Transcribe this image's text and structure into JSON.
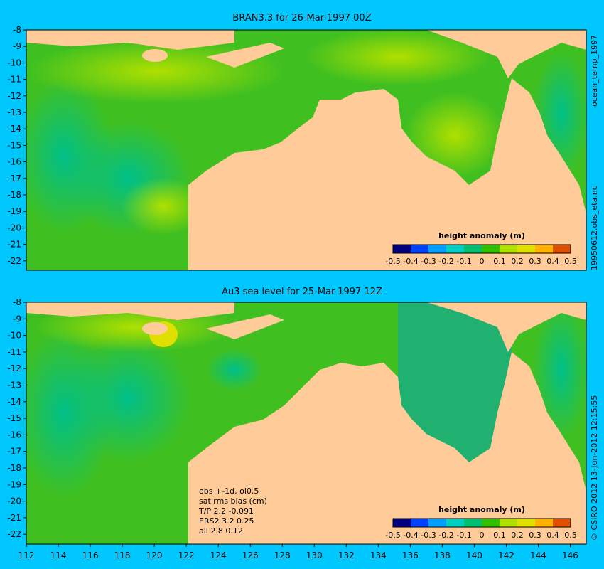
{
  "panels": {
    "top": {
      "title": "BRAN3.3 for 26-Mar-1997 00Z",
      "side_label": "ocean_temp_1997",
      "file_label": "19950612.obs_eta.nc",
      "colorbar": {
        "label": "height anomaly (m)",
        "ticks": [
          "-0.5",
          "-0.4",
          "-0.3",
          "-0.2",
          "-0.1",
          "0",
          "0.1",
          "0.2",
          "0.3",
          "0.4",
          "0.5"
        ]
      }
    },
    "bottom": {
      "title": "Au3 sea level  for 25-Mar-1997 12Z",
      "side_label": "© CSIRO 2012  13-Jun-2012 12:15:55",
      "colorbar": {
        "label": "height anomaly (m)",
        "ticks": [
          "-0.5",
          "-0.4",
          "-0.3",
          "-0.2",
          "-0.1",
          "0",
          "0.1",
          "0.2",
          "0.3",
          "0.4",
          "0.5"
        ]
      },
      "stats": {
        "line1": "obs +-1d, oi0.5",
        "line2": "sat rms bias (cm)",
        "line3": "T/P  2.2 -0.091",
        "line4": "ERS2 3.2 0.25",
        "line5": "all 2.8 0.12"
      }
    }
  },
  "axes": {
    "y_ticks": [
      "-8",
      "-9",
      "-10",
      "-11",
      "-12",
      "-13",
      "-14",
      "-15",
      "-16",
      "-17",
      "-18",
      "-19",
      "-20",
      "-21",
      "-22"
    ],
    "x_ticks": [
      "112",
      "114",
      "116",
      "118",
      "120",
      "122",
      "124",
      "126",
      "128",
      "130",
      "132",
      "134",
      "136",
      "138",
      "140",
      "142",
      "144",
      "146"
    ]
  },
  "colors": {
    "background": "#00c8ff",
    "land": "#ffcc99",
    "colormap": [
      "#00007f",
      "#0040ff",
      "#00a0ff",
      "#00d0c0",
      "#00c070",
      "#30c000",
      "#b0e000",
      "#e0e000",
      "#ffb000",
      "#e05000",
      "#900000"
    ]
  }
}
